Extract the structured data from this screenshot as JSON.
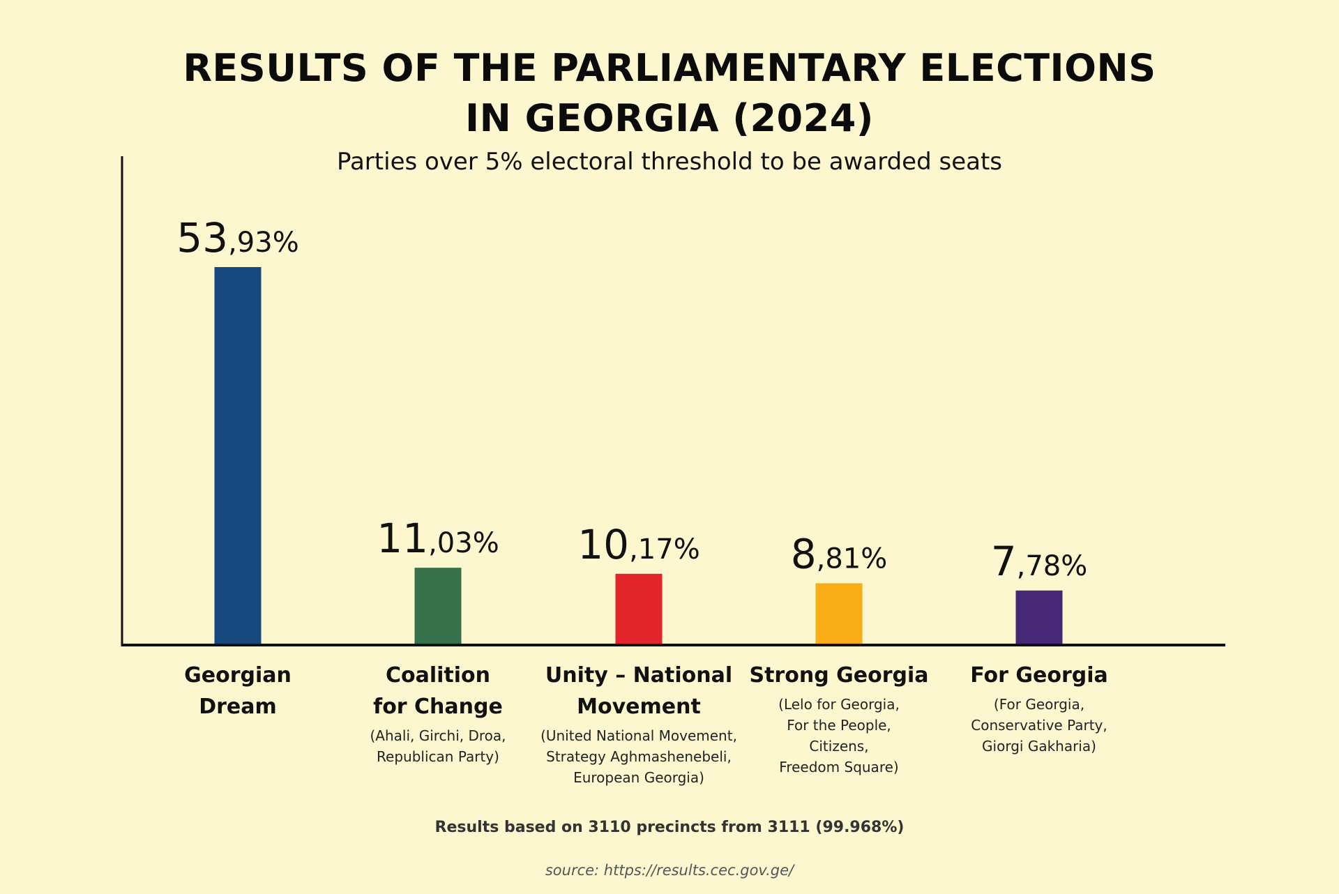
{
  "title_line_1": "RESULTS OF THE PARLIAMENTARY ELECTIONS",
  "title_line_2": "IN GEORGIA (2024)",
  "subtitle": "Parties over 5% electoral threshold to be awarded seats",
  "footnote": "Results based on 3110 precincts from 3111 (99.968%)",
  "source": "source: https://results.cec.gov.ge/",
  "colors": {
    "background": "#fdf7cf",
    "axis": "#111111"
  },
  "chart_data": {
    "type": "bar",
    "grid": false,
    "legend": "none",
    "ylim": [
      0,
      60
    ],
    "categories": [
      "Georgian Dream",
      "Coalition for Change",
      "Unity – National Movement",
      "Strong Georgia",
      "For Georgia"
    ],
    "values": [
      53.93,
      11.03,
      10.17,
      8.81,
      7.78
    ],
    "bars": [
      {
        "name_lines": [
          "Georgian",
          "Dream"
        ],
        "members_lines": [],
        "value": 53.93,
        "label_int": "53",
        "label_frac": ",93%",
        "color": "#17497f"
      },
      {
        "name_lines": [
          "Coalition",
          "for Change"
        ],
        "members_lines": [
          "(Ahali, Girchi, Droa,",
          "Republican Party)"
        ],
        "value": 11.03,
        "label_int": "11",
        "label_frac": ",03%",
        "color": "#37714b"
      },
      {
        "name_lines": [
          "Unity – National",
          "Movement"
        ],
        "members_lines": [
          "(United National Movement,",
          "Strategy Aghmashenebeli,",
          "European Georgia)"
        ],
        "value": 10.17,
        "label_int": "10",
        "label_frac": ",17%",
        "color": "#e2262b"
      },
      {
        "name_lines": [
          "Strong Georgia"
        ],
        "members_lines": [
          "(Lelo for Georgia,",
          "For the People,",
          "Citizens,",
          "Freedom Square)"
        ],
        "value": 8.81,
        "label_int": "8",
        "label_frac": ",81%",
        "color": "#f9ad17"
      },
      {
        "name_lines": [
          "For Georgia"
        ],
        "members_lines": [
          "(For Georgia,",
          "Conservative Party,",
          "Giorgi Gakharia)"
        ],
        "value": 7.78,
        "label_int": "7",
        "label_frac": ",78%",
        "color": "#472876"
      }
    ]
  }
}
